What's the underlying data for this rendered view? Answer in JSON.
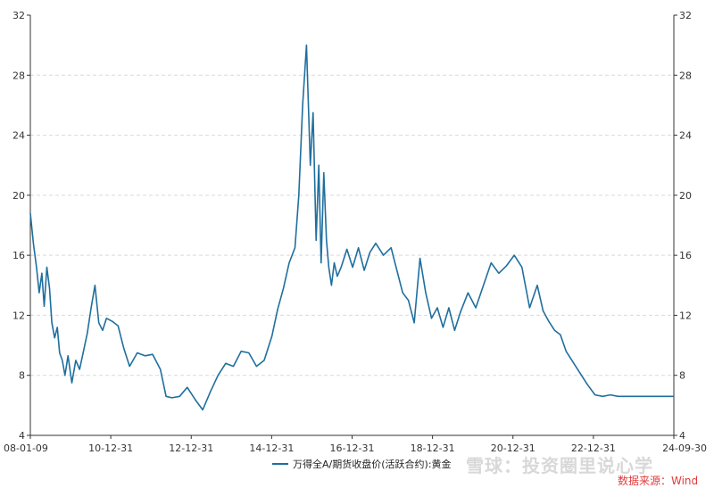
{
  "chart_data": {
    "type": "line",
    "colors": {
      "series": "#1f6f9e",
      "grid": "#d9d9d9",
      "axis": "#333333",
      "source": "#e23b3b"
    },
    "y_ticks": [
      "4",
      "8",
      "12",
      "16",
      "20",
      "24",
      "28",
      "32"
    ],
    "x_ticks": [
      "08-01-09",
      "10-12-31",
      "12-12-31",
      "14-12-31",
      "16-12-31",
      "18-12-31",
      "20-12-31",
      "22-12-31",
      "24-09-30"
    ],
    "ylim": [
      4,
      32
    ],
    "grid": true,
    "dual_y_axis": true,
    "series": [
      {
        "name": "万得全A/期货收盘价(活跃合约):黄金",
        "x": [
          2008.02,
          2008.1,
          2008.18,
          2008.25,
          2008.32,
          2008.38,
          2008.45,
          2008.52,
          2008.58,
          2008.65,
          2008.72,
          2008.78,
          2008.85,
          2008.92,
          2009.0,
          2009.1,
          2009.2,
          2009.3,
          2009.4,
          2009.5,
          2009.6,
          2009.7,
          2009.8,
          2009.9,
          2010.0,
          2010.15,
          2010.3,
          2010.45,
          2010.6,
          2010.8,
          2011.0,
          2011.2,
          2011.4,
          2011.55,
          2011.7,
          2011.9,
          2012.1,
          2012.3,
          2012.5,
          2012.7,
          2012.9,
          2013.1,
          2013.3,
          2013.5,
          2013.7,
          2013.9,
          2014.1,
          2014.3,
          2014.45,
          2014.6,
          2014.75,
          2014.9,
          2015.0,
          2015.1,
          2015.2,
          2015.3,
          2015.37,
          2015.45,
          2015.52,
          2015.58,
          2015.65,
          2015.72,
          2015.78,
          2015.85,
          2015.92,
          2016.0,
          2016.1,
          2016.25,
          2016.4,
          2016.55,
          2016.7,
          2016.85,
          2017.0,
          2017.2,
          2017.4,
          2017.55,
          2017.7,
          2017.85,
          2018.0,
          2018.15,
          2018.3,
          2018.45,
          2018.6,
          2018.75,
          2018.9,
          2019.05,
          2019.2,
          2019.4,
          2019.6,
          2019.8,
          2020.0,
          2020.2,
          2020.4,
          2020.6,
          2020.8,
          2021.0,
          2021.2,
          2021.35,
          2021.5,
          2021.65,
          2021.8,
          2021.95,
          2022.1,
          2022.3,
          2022.5,
          2022.7,
          2022.9,
          2023.1,
          2023.3,
          2023.5,
          2023.7,
          2023.9,
          2024.1,
          2024.3,
          2024.5,
          2024.65,
          2024.75
        ],
        "values": [
          18.8,
          16.8,
          15.2,
          13.5,
          14.8,
          12.6,
          15.2,
          13.8,
          11.5,
          10.5,
          11.2,
          9.5,
          9.0,
          8.0,
          9.3,
          7.5,
          9.0,
          8.4,
          9.6,
          10.8,
          12.5,
          14.0,
          11.5,
          11.0,
          11.8,
          11.6,
          11.3,
          9.8,
          8.6,
          9.5,
          9.3,
          9.4,
          8.4,
          6.6,
          6.5,
          6.6,
          7.2,
          6.4,
          5.7,
          6.9,
          8.0,
          8.8,
          8.6,
          9.6,
          9.5,
          8.6,
          9.0,
          10.6,
          12.4,
          13.8,
          15.5,
          16.5,
          20.0,
          26.0,
          30.0,
          22.0,
          25.5,
          17.0,
          22.0,
          15.5,
          21.5,
          17.0,
          15.2,
          14.0,
          15.5,
          14.6,
          15.2,
          16.4,
          15.2,
          16.5,
          15.0,
          16.2,
          16.8,
          16.0,
          16.5,
          15.0,
          13.5,
          13.0,
          11.5,
          15.8,
          13.5,
          11.8,
          12.5,
          11.2,
          12.5,
          11.0,
          12.2,
          13.5,
          12.5,
          14.0,
          15.5,
          14.8,
          15.3,
          16.0,
          15.2,
          12.5,
          14.0,
          12.3,
          11.6,
          11.0,
          10.7,
          9.6,
          9.0,
          8.2,
          7.4,
          6.7,
          6.6,
          6.7,
          6.6,
          6.6,
          6.6,
          6.6,
          6.6,
          6.6,
          6.6,
          6.6,
          6.6
        ]
      }
    ],
    "legend": {
      "position": "bottom-center"
    }
  },
  "watermark": "雪球：投资圈里说心学",
  "source_text": "数据来源：Wind"
}
